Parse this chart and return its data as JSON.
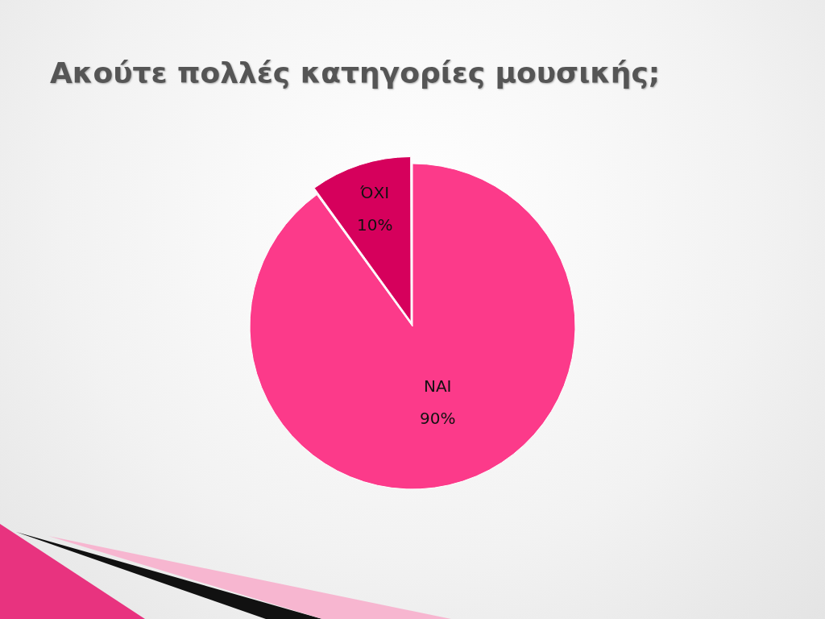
{
  "chart_data": {
    "type": "pie",
    "title": "Ακούτε πολλές κατηγορίες μουσικής;",
    "categories": [
      "ΝΑΙ",
      "ΌΧΙ"
    ],
    "values": [
      90,
      10
    ],
    "colors": [
      "#fc3a8a",
      "#d6005c"
    ],
    "value_labels": [
      "90%",
      "10%"
    ],
    "legend": false
  }
}
